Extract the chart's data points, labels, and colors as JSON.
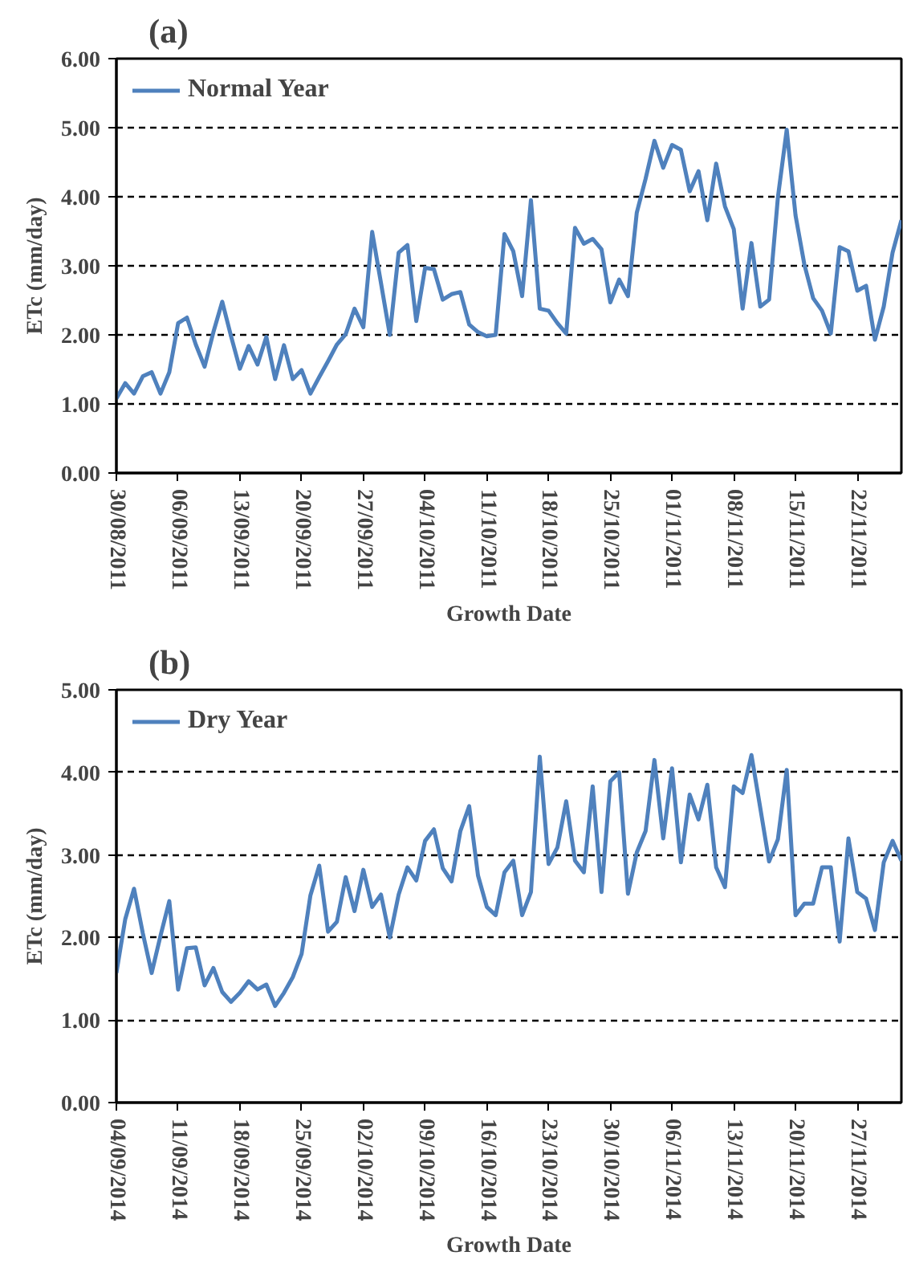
{
  "chart_data": [
    {
      "type": "line",
      "title": "(a)",
      "xlabel": "Growth Date",
      "ylabel": "ETc (mm/day)",
      "legend": "top left",
      "grid": "y",
      "x": [
        "2011-08-30",
        "2011-08-31",
        "2011-09-01",
        "2011-09-02",
        "2011-09-03",
        "2011-09-04",
        "2011-09-05",
        "2011-09-06",
        "2011-09-07",
        "2011-09-08",
        "2011-09-09",
        "2011-09-10",
        "2011-09-11",
        "2011-09-12",
        "2011-09-13",
        "2011-09-14",
        "2011-09-15",
        "2011-09-16",
        "2011-09-17",
        "2011-09-18",
        "2011-09-19",
        "2011-09-20",
        "2011-09-21",
        "2011-09-22",
        "2011-09-23",
        "2011-09-24",
        "2011-09-25",
        "2011-09-26",
        "2011-09-27",
        "2011-09-28",
        "2011-09-29",
        "2011-09-30",
        "2011-10-01",
        "2011-10-02",
        "2011-10-03",
        "2011-10-04",
        "2011-10-05",
        "2011-10-06",
        "2011-10-07",
        "2011-10-08",
        "2011-10-09",
        "2011-10-10",
        "2011-10-11",
        "2011-10-12",
        "2011-10-13",
        "2011-10-14",
        "2011-10-15",
        "2011-10-16",
        "2011-10-17",
        "2011-10-18",
        "2011-10-19",
        "2011-10-20",
        "2011-10-21",
        "2011-10-22",
        "2011-10-23",
        "2011-10-24",
        "2011-10-25",
        "2011-10-26",
        "2011-10-27",
        "2011-10-28",
        "2011-10-29",
        "2011-10-30",
        "2011-10-31",
        "2011-11-01",
        "2011-11-02",
        "2011-11-03",
        "2011-11-04",
        "2011-11-05",
        "2011-11-06",
        "2011-11-07",
        "2011-11-08",
        "2011-11-09",
        "2011-11-10",
        "2011-11-11",
        "2011-11-12",
        "2011-11-13",
        "2011-11-14",
        "2011-11-15",
        "2011-11-16",
        "2011-11-17",
        "2011-11-18",
        "2011-11-19",
        "2011-11-20",
        "2011-11-21",
        "2011-11-22",
        "2011-11-23",
        "2011-11-24",
        "2011-11-25",
        "2011-11-26",
        "2011-11-27"
      ],
      "xlim": [
        "2011-08-30",
        "2011-11-27"
      ],
      "xticks": [
        {
          "value": "2011-08-30",
          "label": "30/08/2011"
        },
        {
          "value": "2011-09-06",
          "label": "06/09/2011"
        },
        {
          "value": "2011-09-13",
          "label": "13/09/2011"
        },
        {
          "value": "2011-09-20",
          "label": "20/09/2011"
        },
        {
          "value": "2011-09-27",
          "label": "27/09/2011"
        },
        {
          "value": "2011-10-04",
          "label": "04/10/2011"
        },
        {
          "value": "2011-10-11",
          "label": "11/10/2011"
        },
        {
          "value": "2011-10-18",
          "label": "18/10/2011"
        },
        {
          "value": "2011-10-25",
          "label": "25/10/2011"
        },
        {
          "value": "2011-11-01",
          "label": "01/11/2011"
        },
        {
          "value": "2011-11-08",
          "label": "08/11/2011"
        },
        {
          "value": "2011-11-15",
          "label": "15/11/2011"
        },
        {
          "value": "2011-11-22",
          "label": "22/11/2011"
        }
      ],
      "ylim": [
        0,
        6
      ],
      "yticks": [
        {
          "value": 0,
          "label": "0.00"
        },
        {
          "value": 1,
          "label": "1.00"
        },
        {
          "value": 2,
          "label": "2.00"
        },
        {
          "value": 3,
          "label": "3.00"
        },
        {
          "value": 4,
          "label": "4.00"
        },
        {
          "value": 5,
          "label": "5.00"
        },
        {
          "value": 6,
          "label": "6.00"
        }
      ],
      "series": [
        {
          "name": "Normal Year",
          "color": "#4f81bd",
          "values": [
            1.08,
            1.3,
            1.15,
            1.4,
            1.46,
            1.15,
            1.46,
            2.17,
            2.25,
            1.86,
            1.54,
            2.04,
            2.48,
            1.98,
            1.51,
            1.84,
            1.57,
            1.97,
            1.36,
            1.85,
            1.36,
            1.49,
            1.15,
            1.39,
            1.62,
            1.86,
            2.01,
            2.38,
            2.11,
            3.49,
            2.75,
            2.0,
            3.19,
            3.3,
            2.2,
            2.97,
            2.95,
            2.51,
            2.59,
            2.62,
            2.15,
            2.04,
            1.98,
            2.0,
            3.46,
            3.21,
            2.56,
            3.95,
            2.38,
            2.35,
            2.17,
            2.02,
            3.55,
            3.32,
            3.39,
            3.24,
            2.47,
            2.8,
            2.56,
            3.77,
            4.26,
            4.81,
            4.42,
            4.75,
            4.68,
            4.08,
            4.37,
            3.66,
            4.48,
            3.86,
            3.53,
            2.38,
            3.33,
            2.41,
            2.51,
            3.99,
            4.97,
            3.73,
            3.02,
            2.53,
            2.35,
            2.02,
            3.27,
            3.21,
            2.64,
            2.71,
            1.93,
            2.41,
            3.19,
            3.66
          ]
        }
      ]
    },
    {
      "type": "line",
      "title": "(b)",
      "xlabel": "Growth Date",
      "ylabel": "ETc (mm/day)",
      "legend": "top left",
      "grid": "y",
      "x": [
        "2014-09-04",
        "2014-09-05",
        "2014-09-06",
        "2014-09-07",
        "2014-09-08",
        "2014-09-09",
        "2014-09-10",
        "2014-09-11",
        "2014-09-12",
        "2014-09-13",
        "2014-09-14",
        "2014-09-15",
        "2014-09-16",
        "2014-09-17",
        "2014-09-18",
        "2014-09-19",
        "2014-09-20",
        "2014-09-21",
        "2014-09-22",
        "2014-09-23",
        "2014-09-24",
        "2014-09-25",
        "2014-09-26",
        "2014-09-27",
        "2014-09-28",
        "2014-09-29",
        "2014-09-30",
        "2014-10-01",
        "2014-10-02",
        "2014-10-03",
        "2014-10-04",
        "2014-10-05",
        "2014-10-06",
        "2014-10-07",
        "2014-10-08",
        "2014-10-09",
        "2014-10-10",
        "2014-10-11",
        "2014-10-12",
        "2014-10-13",
        "2014-10-14",
        "2014-10-15",
        "2014-10-16",
        "2014-10-17",
        "2014-10-18",
        "2014-10-19",
        "2014-10-20",
        "2014-10-21",
        "2014-10-22",
        "2014-10-23",
        "2014-10-24",
        "2014-10-25",
        "2014-10-26",
        "2014-10-27",
        "2014-10-28",
        "2014-10-29",
        "2014-10-30",
        "2014-10-31",
        "2014-11-01",
        "2014-11-02",
        "2014-11-03",
        "2014-11-04",
        "2014-11-05",
        "2014-11-06",
        "2014-11-07",
        "2014-11-08",
        "2014-11-09",
        "2014-11-10",
        "2014-11-11",
        "2014-11-12",
        "2014-11-13",
        "2014-11-14",
        "2014-11-15",
        "2014-11-16",
        "2014-11-17",
        "2014-11-18",
        "2014-11-19",
        "2014-11-20",
        "2014-11-21",
        "2014-11-22",
        "2014-11-23",
        "2014-11-24",
        "2014-11-25",
        "2014-11-26",
        "2014-11-27",
        "2014-11-28",
        "2014-11-29",
        "2014-11-30",
        "2014-12-01",
        "2014-12-02"
      ],
      "xlim": [
        "2014-09-04",
        "2014-12-02"
      ],
      "xticks": [
        {
          "value": "2014-09-04",
          "label": "04/09/2014"
        },
        {
          "value": "2014-09-11",
          "label": "11/09/2014"
        },
        {
          "value": "2014-09-18",
          "label": "18/09/2014"
        },
        {
          "value": "2014-09-25",
          "label": "25/09/2014"
        },
        {
          "value": "2014-10-02",
          "label": "02/10/2014"
        },
        {
          "value": "2014-10-09",
          "label": "09/10/2014"
        },
        {
          "value": "2014-10-16",
          "label": "16/10/2014"
        },
        {
          "value": "2014-10-23",
          "label": "23/10/2014"
        },
        {
          "value": "2014-10-30",
          "label": "30/10/2014"
        },
        {
          "value": "2014-11-06",
          "label": "06/11/2014"
        },
        {
          "value": "2014-11-13",
          "label": "13/11/2014"
        },
        {
          "value": "2014-11-20",
          "label": "20/11/2014"
        },
        {
          "value": "2014-11-27",
          "label": "27/11/2014"
        }
      ],
      "ylim": [
        0,
        5
      ],
      "yticks": [
        {
          "value": 0,
          "label": "0.00"
        },
        {
          "value": 1,
          "label": "1.00"
        },
        {
          "value": 2,
          "label": "2.00"
        },
        {
          "value": 3,
          "label": "3.00"
        },
        {
          "value": 4,
          "label": "4.00"
        },
        {
          "value": 5,
          "label": "5.00"
        }
      ],
      "series": [
        {
          "name": "Dry Year",
          "color": "#4f81bd",
          "values": [
            1.57,
            2.22,
            2.59,
            2.05,
            1.57,
            2.02,
            2.44,
            1.37,
            1.87,
            1.88,
            1.42,
            1.63,
            1.34,
            1.22,
            1.33,
            1.47,
            1.37,
            1.43,
            1.17,
            1.33,
            1.52,
            1.8,
            2.51,
            2.87,
            2.07,
            2.19,
            2.73,
            2.32,
            2.82,
            2.37,
            2.52,
            2.0,
            2.52,
            2.85,
            2.69,
            3.17,
            3.31,
            2.84,
            2.68,
            3.29,
            3.59,
            2.75,
            2.37,
            2.27,
            2.79,
            2.93,
            2.27,
            2.55,
            4.19,
            2.89,
            3.09,
            3.65,
            2.93,
            2.79,
            3.83,
            2.55,
            3.89,
            4.0,
            2.53,
            3.03,
            3.29,
            4.15,
            3.2,
            4.05,
            2.91,
            3.73,
            3.43,
            3.85,
            2.85,
            2.61,
            3.83,
            3.75,
            4.21,
            3.57,
            2.92,
            3.19,
            4.03,
            2.27,
            2.41,
            2.41,
            2.85,
            2.85,
            1.95,
            3.2,
            2.55,
            2.47,
            2.09,
            2.91,
            3.17,
            2.93
          ]
        }
      ]
    }
  ]
}
